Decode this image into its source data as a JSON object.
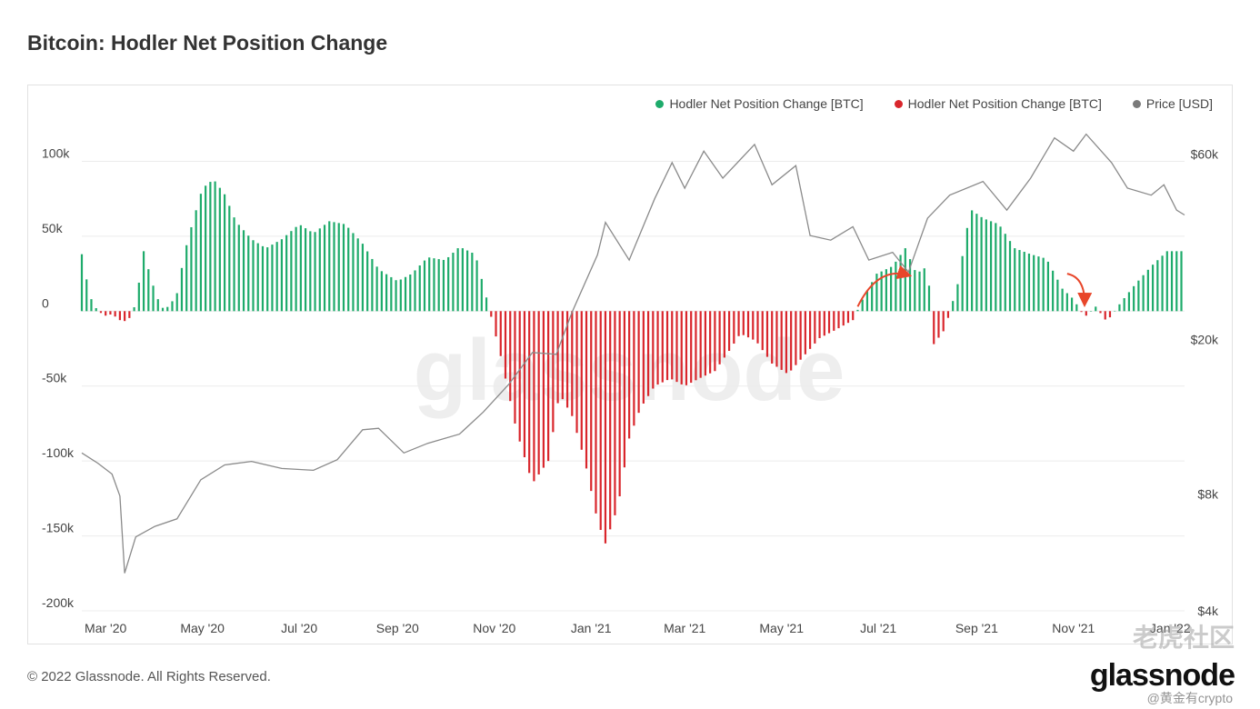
{
  "title": "Bitcoin: Hodler Net Position Change",
  "footer": "© 2022 Glassnode. All Rights Reserved.",
  "logo": "glassnode",
  "background_mark": "glassnode",
  "watermark": "老虎社区",
  "watermark_handle": "@黄金有crypto",
  "legend": [
    {
      "label": "Hodler Net Position Change [BTC]",
      "color": "#1eab6b"
    },
    {
      "label": "Hodler Net Position Change [BTC]",
      "color": "#d9262c"
    },
    {
      "label": "Price [USD]",
      "color": "#7a7a7a"
    }
  ],
  "colors": {
    "positive": "#1eab6b",
    "negative": "#d9262c",
    "price": "#8a8a8a",
    "arrow": "#e8462a",
    "grid": "#ececec"
  },
  "chart_data": {
    "type": "bar",
    "title": "Bitcoin: Hodler Net Position Change",
    "x_range": [
      "2020-02-15",
      "2022-01-10"
    ],
    "x_ticks": [
      "Mar '20",
      "May '20",
      "Jul '20",
      "Sep '20",
      "Nov '20",
      "Jan '21",
      "Mar '21",
      "May '21",
      "Jul '21",
      "Sep '21",
      "Nov '21",
      "Jan '22"
    ],
    "x_tick_dates": [
      "2020-03-01",
      "2020-05-01",
      "2020-07-01",
      "2020-09-01",
      "2020-11-01",
      "2021-01-01",
      "2021-03-01",
      "2021-05-01",
      "2021-07-01",
      "2021-09-01",
      "2021-11-01",
      "2022-01-01"
    ],
    "y_left": {
      "ylim": [
        -200000,
        130000
      ],
      "ticks": [
        100000,
        50000,
        0,
        -50000,
        -100000,
        -150000,
        -200000
      ],
      "tick_labels": [
        "100k",
        "50k",
        "0",
        "-50k",
        "-100k",
        "-150k",
        "-200k"
      ]
    },
    "y_right": {
      "scale": "log",
      "ylim": [
        4000,
        75000
      ],
      "ticks": [
        60000,
        20000,
        8000,
        4000
      ],
      "tick_labels": [
        "$60k",
        "$20k",
        "$8k",
        "$4k"
      ]
    },
    "grid": true,
    "legend_position": "top-right",
    "series": [
      {
        "name": "Hodler Net Position Change [BTC]",
        "type": "bar",
        "points": [
          [
            "2020-02-15",
            38000
          ],
          [
            "2020-02-20",
            10000
          ],
          [
            "2020-02-25",
            0
          ],
          [
            "2020-03-01",
            -3000
          ],
          [
            "2020-03-05",
            -2000
          ],
          [
            "2020-03-10",
            -6000
          ],
          [
            "2020-03-15",
            -7000
          ],
          [
            "2020-03-20",
            5000
          ],
          [
            "2020-03-25",
            40000
          ],
          [
            "2020-03-30",
            20000
          ],
          [
            "2020-04-05",
            2000
          ],
          [
            "2020-04-10",
            3000
          ],
          [
            "2020-04-15",
            12000
          ],
          [
            "2020-04-20",
            40000
          ],
          [
            "2020-04-25",
            60000
          ],
          [
            "2020-05-01",
            82000
          ],
          [
            "2020-05-08",
            88000
          ],
          [
            "2020-05-15",
            78000
          ],
          [
            "2020-05-22",
            60000
          ],
          [
            "2020-06-01",
            48000
          ],
          [
            "2020-06-10",
            42000
          ],
          [
            "2020-06-20",
            48000
          ],
          [
            "2020-07-01",
            58000
          ],
          [
            "2020-07-10",
            52000
          ],
          [
            "2020-07-20",
            60000
          ],
          [
            "2020-07-30",
            58000
          ],
          [
            "2020-08-10",
            45000
          ],
          [
            "2020-08-20",
            28000
          ],
          [
            "2020-09-01",
            20000
          ],
          [
            "2020-09-10",
            25000
          ],
          [
            "2020-09-20",
            36000
          ],
          [
            "2020-10-01",
            34000
          ],
          [
            "2020-10-10",
            43000
          ],
          [
            "2020-10-20",
            38000
          ],
          [
            "2020-10-28",
            5000
          ],
          [
            "2020-11-05",
            -30000
          ],
          [
            "2020-11-15",
            -80000
          ],
          [
            "2020-11-25",
            -115000
          ],
          [
            "2020-12-05",
            -100000
          ],
          [
            "2020-12-12",
            -55000
          ],
          [
            "2020-12-20",
            -70000
          ],
          [
            "2020-12-28",
            -100000
          ],
          [
            "2021-01-05",
            -140000
          ],
          [
            "2021-01-10",
            -155000
          ],
          [
            "2021-01-18",
            -130000
          ],
          [
            "2021-01-25",
            -85000
          ],
          [
            "2021-02-01",
            -65000
          ],
          [
            "2021-02-10",
            -50000
          ],
          [
            "2021-02-20",
            -45000
          ],
          [
            "2021-03-01",
            -50000
          ],
          [
            "2021-03-10",
            -45000
          ],
          [
            "2021-03-20",
            -40000
          ],
          [
            "2021-03-30",
            -25000
          ],
          [
            "2021-04-05",
            -15000
          ],
          [
            "2021-04-15",
            -20000
          ],
          [
            "2021-04-25",
            -35000
          ],
          [
            "2021-05-05",
            -42000
          ],
          [
            "2021-05-15",
            -30000
          ],
          [
            "2021-05-25",
            -18000
          ],
          [
            "2021-06-05",
            -12000
          ],
          [
            "2021-06-15",
            -6000
          ],
          [
            "2021-06-22",
            10000
          ],
          [
            "2021-06-30",
            25000
          ],
          [
            "2021-07-10",
            30000
          ],
          [
            "2021-07-18",
            42000
          ],
          [
            "2021-07-25",
            25000
          ],
          [
            "2021-08-01",
            30000
          ],
          [
            "2021-08-05",
            -22000
          ],
          [
            "2021-08-12",
            -12000
          ],
          [
            "2021-08-20",
            18000
          ],
          [
            "2021-08-28",
            68000
          ],
          [
            "2021-09-05",
            62000
          ],
          [
            "2021-09-15",
            58000
          ],
          [
            "2021-09-25",
            42000
          ],
          [
            "2021-10-05",
            38000
          ],
          [
            "2021-10-15",
            35000
          ],
          [
            "2021-10-25",
            15000
          ],
          [
            "2021-11-01",
            8000
          ],
          [
            "2021-11-08",
            -4000
          ],
          [
            "2021-11-15",
            3000
          ],
          [
            "2021-11-22",
            -7000
          ],
          [
            "2021-12-01",
            6000
          ],
          [
            "2021-12-10",
            18000
          ],
          [
            "2021-12-20",
            30000
          ],
          [
            "2021-12-30",
            40000
          ],
          [
            "2022-01-10",
            40000
          ]
        ]
      },
      {
        "name": "Price [USD]",
        "type": "line",
        "axis": "right",
        "points": [
          [
            "2020-02-15",
            10200
          ],
          [
            "2020-02-25",
            9600
          ],
          [
            "2020-03-05",
            9000
          ],
          [
            "2020-03-10",
            7900
          ],
          [
            "2020-03-13",
            5000
          ],
          [
            "2020-03-20",
            6200
          ],
          [
            "2020-04-01",
            6600
          ],
          [
            "2020-04-15",
            6900
          ],
          [
            "2020-04-30",
            8700
          ],
          [
            "2020-05-15",
            9500
          ],
          [
            "2020-06-01",
            9700
          ],
          [
            "2020-06-20",
            9300
          ],
          [
            "2020-07-10",
            9200
          ],
          [
            "2020-07-25",
            9800
          ],
          [
            "2020-08-10",
            11700
          ],
          [
            "2020-08-20",
            11800
          ],
          [
            "2020-09-05",
            10200
          ],
          [
            "2020-09-20",
            10800
          ],
          [
            "2020-10-10",
            11400
          ],
          [
            "2020-10-25",
            13000
          ],
          [
            "2020-11-10",
            15300
          ],
          [
            "2020-11-25",
            18500
          ],
          [
            "2020-12-10",
            18300
          ],
          [
            "2020-12-20",
            23500
          ],
          [
            "2021-01-05",
            33000
          ],
          [
            "2021-01-10",
            40000
          ],
          [
            "2021-01-25",
            32000
          ],
          [
            "2021-02-10",
            46000
          ],
          [
            "2021-02-21",
            57000
          ],
          [
            "2021-03-01",
            49000
          ],
          [
            "2021-03-13",
            61000
          ],
          [
            "2021-03-25",
            52000
          ],
          [
            "2021-04-14",
            63500
          ],
          [
            "2021-04-25",
            50000
          ],
          [
            "2021-05-10",
            56000
          ],
          [
            "2021-05-19",
            37000
          ],
          [
            "2021-06-01",
            36000
          ],
          [
            "2021-06-15",
            39000
          ],
          [
            "2021-06-25",
            32000
          ],
          [
            "2021-07-10",
            33500
          ],
          [
            "2021-07-20",
            29800
          ],
          [
            "2021-08-01",
            41000
          ],
          [
            "2021-08-15",
            47000
          ],
          [
            "2021-09-05",
            51000
          ],
          [
            "2021-09-20",
            43000
          ],
          [
            "2021-10-05",
            52000
          ],
          [
            "2021-10-20",
            66000
          ],
          [
            "2021-11-01",
            61000
          ],
          [
            "2021-11-09",
            67500
          ],
          [
            "2021-11-25",
            57000
          ],
          [
            "2021-12-05",
            49000
          ],
          [
            "2021-12-20",
            47000
          ],
          [
            "2021-12-28",
            50000
          ],
          [
            "2022-01-05",
            43000
          ],
          [
            "2022-01-10",
            41800
          ]
        ]
      }
    ],
    "annotations": [
      {
        "type": "arrow",
        "from": [
          "2021-06-18",
          3000
        ],
        "to": [
          "2021-07-20",
          24000
        ]
      },
      {
        "type": "arrow",
        "from": [
          "2021-10-28",
          25000
        ],
        "to": [
          "2021-11-08",
          5000
        ]
      }
    ]
  }
}
